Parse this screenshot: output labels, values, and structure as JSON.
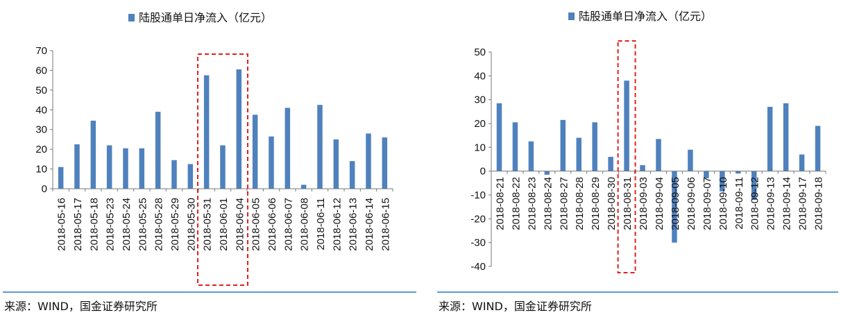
{
  "chart_data": [
    {
      "type": "bar",
      "legend": "陆股通单日净流入（亿元）",
      "legend_position": "top",
      "bar_color": "#4f81bd",
      "highlight_color": "#e02020",
      "ylim": [
        0,
        70
      ],
      "yticks": [
        "0",
        "10",
        "20",
        "30",
        "40",
        "50",
        "60",
        "70"
      ],
      "categories": [
        "2018-05-16",
        "2018-05-17",
        "2018-05-18",
        "2018-05-23",
        "2018-05-24",
        "2018-05-25",
        "2018-05-28",
        "2018-05-29",
        "2018-05-30",
        "2018-05-31",
        "2018-06-01",
        "2018-06-04",
        "2018-06-05",
        "2018-06-06",
        "2018-06-07",
        "2018-06-08",
        "2018-06-11",
        "2018-06-12",
        "2018-06-13",
        "2018-06-14",
        "2018-06-15"
      ],
      "values": [
        11,
        22.5,
        34.5,
        22,
        20.5,
        20.5,
        39,
        14.5,
        12.5,
        57.5,
        22,
        60.5,
        37.5,
        26.5,
        41,
        2,
        42.5,
        25,
        14,
        28,
        26
      ],
      "highlight_categories": [
        "2018-05-31",
        "2018-06-01",
        "2018-06-04"
      ],
      "source": "来源：WIND，国金证券研究所"
    },
    {
      "type": "bar",
      "legend": "陆股通单日净流入（亿元）",
      "legend_position": "top",
      "bar_color": "#4f81bd",
      "highlight_color": "#e02020",
      "ylim": [
        -40,
        50
      ],
      "yticks": [
        "-40",
        "-30",
        "-20",
        "-10",
        "0",
        "10",
        "20",
        "30",
        "40",
        "50"
      ],
      "categories": [
        "2018-08-21",
        "2018-08-22",
        "2018-08-23",
        "2018-08-24",
        "2018-08-27",
        "2018-08-28",
        "2018-08-29",
        "2018-08-30",
        "2018-08-31",
        "2018-09-03",
        "2018-09-04",
        "2018-09-05",
        "2018-09-06",
        "2018-09-07",
        "2018-09-10",
        "2018-09-11",
        "2018-09-12",
        "2018-09-13",
        "2018-09-14",
        "2018-09-17",
        "2018-09-18"
      ],
      "values": [
        28.5,
        20.5,
        12.5,
        -1.5,
        21.5,
        14,
        20.5,
        6,
        38,
        2.5,
        13.5,
        -30,
        9,
        -3,
        -8.5,
        -1,
        -12,
        27,
        28.5,
        7,
        19
      ],
      "highlight_categories": [
        "2018-08-31"
      ],
      "source": "来源：WIND，国金证券研究所"
    }
  ]
}
